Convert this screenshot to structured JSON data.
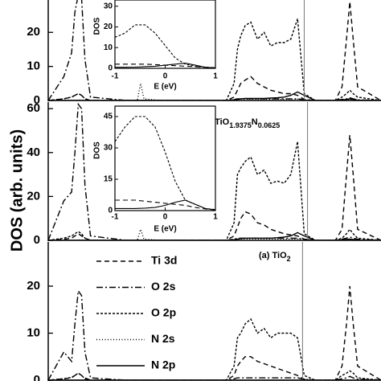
{
  "chart_data": [
    {
      "type": "line",
      "ylim": [
        0,
        29.5
      ],
      "yticks": [
        0,
        10,
        20
      ],
      "xlim": [
        -23,
        6.9
      ],
      "fermi": 0,
      "x": [
        -23,
        -21.6,
        -20.9,
        -20.6,
        -20.3,
        -20.0,
        -19.7,
        -19.2,
        -16,
        -15,
        -14.7,
        -14.4,
        -13,
        -7,
        -6.3,
        -6.0,
        -5.7,
        -5.3,
        -4.8,
        -4.2,
        -3.6,
        -3.0,
        -2.4,
        -1.8,
        -1.2,
        -0.6,
        0,
        1,
        2.8,
        3.4,
        3.8,
        4.1,
        4.4,
        4.8,
        6.9
      ],
      "series": [
        {
          "style": "dash",
          "color": "#000000",
          "values": [
            0,
            0.5,
            1,
            1.5,
            2,
            1.5,
            0.5,
            0,
            0,
            0,
            0,
            0,
            0,
            0,
            1,
            3,
            5,
            6,
            7,
            5,
            4,
            3,
            2.5,
            2,
            2,
            1.5,
            0.3,
            0,
            0,
            4,
            18,
            29,
            18,
            4,
            0
          ]
        },
        {
          "style": "dashdot",
          "color": "#000000",
          "values": [
            0,
            7,
            14,
            26,
            31,
            30,
            12,
            1,
            0,
            0,
            0,
            0,
            0,
            0,
            0.3,
            0.5,
            0.5,
            0.5,
            0.5,
            0.5,
            0.5,
            0.5,
            0.5,
            0.5,
            0.5,
            0.5,
            0.2,
            0,
            0,
            0.3,
            0.5,
            0.8,
            0.5,
            0.2,
            0
          ]
        },
        {
          "style": "shortdash",
          "color": "#000000",
          "values": [
            0,
            0.5,
            1,
            1.5,
            2,
            1.5,
            0.5,
            0,
            0,
            0,
            0,
            0,
            0,
            0,
            5,
            15,
            19,
            22,
            23,
            18,
            20,
            16,
            17,
            17,
            18,
            24,
            2,
            0,
            0,
            1,
            2,
            3,
            2,
            1,
            0
          ]
        },
        {
          "style": "dot",
          "color": "#000000",
          "values": [
            0,
            0,
            0,
            0,
            0.1,
            0.1,
            0,
            0,
            0,
            0,
            5,
            0.5,
            0,
            0,
            0.2,
            0.3,
            0.4,
            0.4,
            0.4,
            0.3,
            0.3,
            0.3,
            0.3,
            0.3,
            0.3,
            0.4,
            0.2,
            0,
            0,
            0.1,
            0.2,
            0.3,
            0.2,
            0.1,
            0
          ]
        },
        {
          "style": "solid",
          "color": "#000000",
          "values": [
            0,
            0,
            0,
            0,
            0,
            0,
            0,
            0,
            0,
            0,
            0,
            0,
            0,
            0,
            0.2,
            0.3,
            0.5,
            0.6,
            0.6,
            0.6,
            0.6,
            0.7,
            0.8,
            1,
            1.5,
            2.5,
            1.5,
            0,
            0,
            0.2,
            0.3,
            0.5,
            0.3,
            0.1,
            0
          ]
        }
      ],
      "inset": {
        "xlabel": "E (eV)",
        "ylabel": "DOS",
        "xlim": [
          -1,
          1
        ],
        "xticks": [
          -1,
          0,
          1
        ],
        "ylim": [
          0,
          33
        ],
        "yticks": [
          0,
          10,
          20,
          30
        ],
        "x": [
          -1,
          -0.8,
          -0.6,
          -0.4,
          -0.2,
          0,
          0.2,
          0.4,
          0.6,
          0.8,
          1
        ],
        "series": [
          {
            "style": "shortdash",
            "values": [
              15,
              17,
              21,
              21,
              17,
              11,
              5,
              2,
              1,
              0.5,
              0.3
            ]
          },
          {
            "style": "dash",
            "values": [
              2,
              2,
              2,
              2,
              1.8,
              1.5,
              1.3,
              1,
              0.8,
              0.5,
              0.3
            ]
          },
          {
            "style": "solid",
            "values": [
              0.5,
              0.5,
              0.6,
              0.8,
              1,
              1.5,
              2,
              2.5,
              1.5,
              0.5,
              0.2
            ]
          }
        ]
      }
    },
    {
      "type": "line",
      "ylim": [
        0,
        63
      ],
      "yticks": [
        0,
        20,
        40,
        60
      ],
      "xlim": [
        -23,
        6.9
      ],
      "fermi": 0.3,
      "title_parts": [
        {
          "text": "(b) TiO"
        },
        {
          "text": "1.9375",
          "sub": true
        },
        {
          "text": "N"
        },
        {
          "text": "0.0625",
          "sub": true
        }
      ],
      "x": [
        -23,
        -21.6,
        -20.9,
        -20.6,
        -20.3,
        -20.0,
        -19.7,
        -19.2,
        -16,
        -15,
        -14.7,
        -14.4,
        -13,
        -7,
        -6.3,
        -6.0,
        -5.7,
        -5.3,
        -4.8,
        -4.2,
        -3.6,
        -3.0,
        -2.4,
        -1.8,
        -1.2,
        -0.6,
        0,
        1,
        2.8,
        3.4,
        3.8,
        4.1,
        4.4,
        4.8,
        6.9
      ],
      "series": [
        {
          "style": "dash",
          "color": "#000000",
          "values": [
            0,
            0.5,
            1,
            2,
            3,
            2,
            1,
            0,
            0,
            0,
            0,
            0,
            0,
            0,
            2,
            6,
            10,
            13,
            12,
            8,
            7,
            5,
            4,
            3,
            2.5,
            2,
            0.5,
            0,
            0,
            5,
            30,
            48,
            30,
            5,
            0
          ]
        },
        {
          "style": "dashdot",
          "color": "#000000",
          "values": [
            0,
            18,
            22,
            40,
            62,
            60,
            25,
            2,
            0,
            0,
            0,
            0,
            0,
            0,
            0.5,
            1,
            1,
            1,
            1,
            1,
            1,
            1,
            1,
            1,
            1,
            1,
            0.5,
            0,
            0,
            0.5,
            1,
            1.5,
            1,
            0.5,
            0
          ]
        },
        {
          "style": "shortdash",
          "color": "#000000",
          "values": [
            0,
            1,
            2,
            3,
            4,
            3,
            1,
            0,
            0,
            0,
            0,
            0,
            0,
            0,
            8,
            30,
            33,
            36,
            38,
            30,
            32,
            26,
            27,
            26,
            30,
            45,
            3,
            0,
            0,
            1,
            3,
            5,
            3,
            1,
            0
          ]
        },
        {
          "style": "dot",
          "color": "#000000",
          "values": [
            0,
            0,
            0,
            0,
            0.2,
            0.2,
            0,
            0,
            0,
            0,
            5,
            0.5,
            0,
            0,
            0.3,
            0.5,
            0.6,
            0.6,
            0.6,
            0.5,
            0.5,
            0.5,
            0.5,
            0.5,
            0.5,
            0.6,
            0.3,
            0,
            0,
            0.1,
            0.3,
            0.4,
            0.3,
            0.1,
            0
          ]
        },
        {
          "style": "solid",
          "color": "#000000",
          "values": [
            0,
            0,
            0,
            0,
            0,
            0,
            0,
            0,
            0,
            0,
            0,
            0,
            0,
            0,
            0.3,
            0.5,
            0.8,
            1,
            1,
            1,
            1,
            1,
            1.2,
            1.5,
            2,
            3.5,
            2,
            0,
            0,
            0.2,
            0.4,
            0.6,
            0.4,
            0.1,
            0
          ]
        }
      ],
      "inset": {
        "xlabel": "E (eV)",
        "ylabel": "DOS",
        "xlim": [
          -1,
          1
        ],
        "xticks": [
          -1,
          0,
          1
        ],
        "ylim": [
          0,
          50
        ],
        "yticks": [
          0,
          15,
          30,
          45
        ],
        "x": [
          -1,
          -0.8,
          -0.6,
          -0.4,
          -0.2,
          0,
          0.2,
          0.4,
          0.6,
          0.8,
          1
        ],
        "series": [
          {
            "style": "shortdash",
            "values": [
              33,
              40,
              45,
              45,
              40,
              28,
              14,
              5,
              3,
              1,
              0.5
            ]
          },
          {
            "style": "dash",
            "values": [
              5,
              5,
              5,
              4.5,
              4,
              3.5,
              3,
              2.5,
              1.5,
              0.8,
              0.3
            ]
          },
          {
            "style": "solid",
            "values": [
              1,
              1,
              1,
              1.2,
              1.5,
              2.5,
              4,
              5,
              3,
              1,
              0.3
            ]
          }
        ]
      }
    },
    {
      "type": "line",
      "ylim": [
        0,
        29.4
      ],
      "yticks": [
        0,
        10,
        20
      ],
      "xlim": [
        -23,
        6.9
      ],
      "fermi": -0.15,
      "title_parts": [
        {
          "text": "(a) TiO"
        },
        {
          "text": "2",
          "sub": true
        }
      ],
      "x": [
        -23,
        -21.6,
        -20.9,
        -20.6,
        -20.3,
        -20.0,
        -19.7,
        -19.2,
        -16,
        -15,
        -14.7,
        -14.4,
        -13,
        -7,
        -6.3,
        -6.0,
        -5.7,
        -5.3,
        -4.8,
        -4.2,
        -3.6,
        -3.0,
        -2.4,
        -1.8,
        -1.2,
        -0.6,
        0,
        1,
        2.8,
        3.4,
        3.8,
        4.1,
        4.4,
        4.8,
        6.9
      ],
      "series": [
        {
          "name": "Ti 3d",
          "style": "dash",
          "color": "#000000",
          "values": [
            0,
            0.3,
            0.5,
            1,
            1.5,
            1,
            0.5,
            0,
            0,
            0,
            0,
            0,
            0,
            0,
            1,
            3,
            4,
            5,
            5,
            4,
            3.5,
            3,
            2.5,
            2,
            1.5,
            1,
            0.2,
            0,
            0,
            3,
            12,
            20,
            12,
            3,
            0
          ]
        },
        {
          "name": "O 2s",
          "style": "dashdot",
          "color": "#000000",
          "values": [
            0,
            6,
            4,
            12,
            19,
            18,
            6,
            0.5,
            0,
            0,
            0,
            0,
            0,
            0,
            0.3,
            0.5,
            0.5,
            0.5,
            0.5,
            0.5,
            0.5,
            0.5,
            0.5,
            0.5,
            0.5,
            0.5,
            0.2,
            0,
            0,
            0.3,
            0.5,
            0.8,
            0.5,
            0.2,
            0
          ]
        },
        {
          "name": "O 2p",
          "style": "shortdash",
          "color": "#000000",
          "values": [
            0,
            0.3,
            0.6,
            1,
            1.5,
            1,
            0.3,
            0,
            0,
            0,
            0,
            0,
            0,
            0,
            3,
            9,
            10,
            12,
            13,
            10,
            11,
            9,
            10,
            10,
            10,
            9,
            1,
            0,
            0,
            1,
            1.5,
            2,
            1.5,
            0.5,
            0
          ]
        },
        {
          "name": "N 2s",
          "style": "dot",
          "color": "#000000",
          "values": [
            0,
            0,
            0,
            0,
            0,
            0,
            0,
            0,
            0,
            0,
            0,
            0,
            0,
            0,
            0,
            0,
            0,
            0,
            0,
            0,
            0,
            0,
            0,
            0,
            0,
            0,
            0,
            0,
            0,
            0,
            0,
            0,
            0,
            0,
            0
          ]
        },
        {
          "name": "N 2p",
          "style": "solid",
          "color": "#000000",
          "values": [
            0,
            0,
            0,
            0,
            0,
            0,
            0,
            0,
            0,
            0,
            0,
            0,
            0,
            0,
            0,
            0,
            0,
            0,
            0,
            0,
            0,
            0,
            0,
            0,
            0,
            0,
            0,
            0,
            0,
            0,
            0,
            0,
            0,
            0,
            0
          ]
        }
      ]
    }
  ],
  "ylabel": "DOS (arb. units)"
}
